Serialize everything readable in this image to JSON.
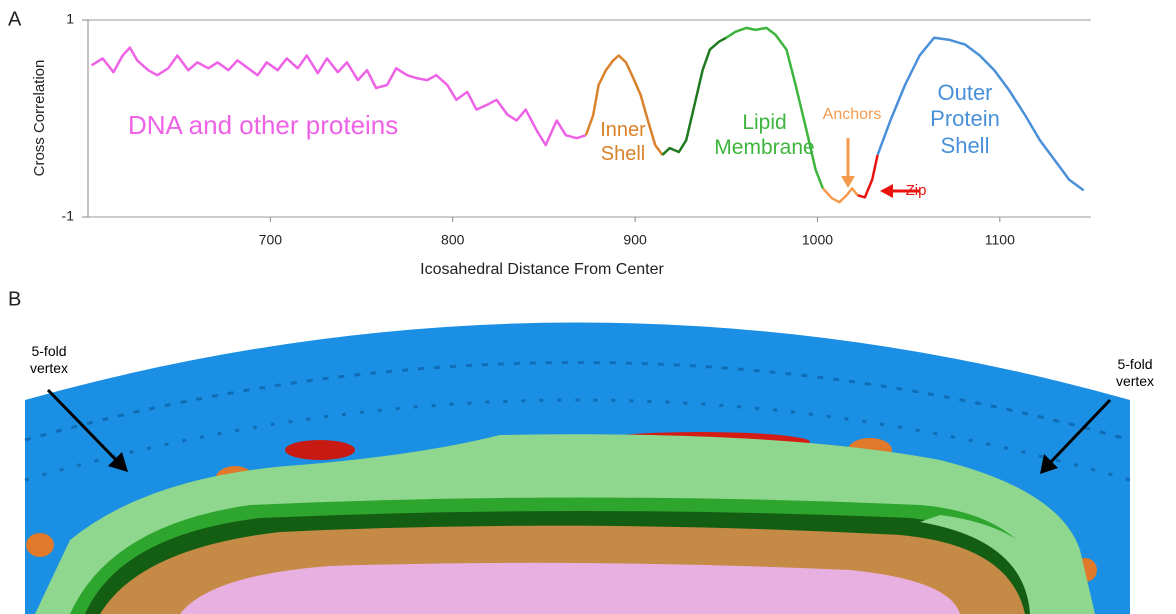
{
  "chart_data": {
    "type": "line",
    "panel_label": "A",
    "xlabel": "Icosahedral Distance From Center",
    "ylabel": "Cross Correlation",
    "xlim": [
      600,
      1150
    ],
    "xticks": [
      700,
      800,
      900,
      1000,
      1100
    ],
    "ylim": [
      -1,
      1
    ],
    "yticks": [
      -1,
      1
    ],
    "grid": true,
    "series": [
      {
        "name": "DNA and other proteins",
        "color": "#ee62e6",
        "x": [
          602,
          608,
          614,
          619,
          623,
          627,
          633,
          638,
          644,
          649,
          655,
          660,
          666,
          671,
          677,
          682,
          687,
          693,
          698,
          704,
          709,
          715,
          720,
          726,
          731,
          737,
          742,
          748,
          753,
          758,
          764,
          769,
          775,
          780,
          786,
          791,
          797,
          802,
          808,
          813,
          819,
          824,
          830,
          835,
          840,
          846,
          851,
          857,
          862,
          868,
          873
        ],
        "values": [
          0.54,
          0.61,
          0.47,
          0.64,
          0.72,
          0.59,
          0.49,
          0.44,
          0.51,
          0.64,
          0.49,
          0.57,
          0.51,
          0.57,
          0.49,
          0.59,
          0.52,
          0.44,
          0.57,
          0.49,
          0.61,
          0.51,
          0.64,
          0.46,
          0.61,
          0.47,
          0.57,
          0.39,
          0.49,
          0.31,
          0.34,
          0.51,
          0.44,
          0.41,
          0.39,
          0.44,
          0.34,
          0.19,
          0.27,
          0.09,
          0.14,
          0.19,
          0.04,
          -0.02,
          0.09,
          -0.12,
          -0.27,
          -0.02,
          -0.17,
          -0.2,
          -0.17
        ]
      },
      {
        "name": "Inner Shell",
        "color": "#d9822b",
        "x": [
          873,
          877,
          880,
          884,
          888,
          891,
          895,
          899,
          903,
          907,
          911,
          915
        ],
        "values": [
          -0.17,
          0.03,
          0.34,
          0.49,
          0.59,
          0.64,
          0.57,
          0.41,
          0.24,
          -0.02,
          -0.27,
          -0.37
        ]
      },
      {
        "color": "#1f7a1f",
        "x": [
          915,
          919,
          924,
          928,
          932,
          937,
          941,
          946,
          950
        ],
        "values": [
          -0.37,
          -0.3,
          -0.34,
          -0.22,
          0.09,
          0.49,
          0.7,
          0.78,
          0.82
        ]
      },
      {
        "name": "Lipid Membrane",
        "color": "#3db53d",
        "x": [
          950,
          955,
          961,
          966,
          972,
          977,
          983,
          988,
          994,
          999,
          1003
        ],
        "values": [
          0.82,
          0.88,
          0.92,
          0.9,
          0.92,
          0.85,
          0.7,
          0.34,
          -0.12,
          -0.52,
          -0.71
        ]
      },
      {
        "name": "Anchors",
        "color": "#f39a4e",
        "x": [
          1003,
          1008,
          1012,
          1016,
          1019,
          1022
        ],
        "values": [
          -0.71,
          -0.81,
          -0.85,
          -0.78,
          -0.71,
          -0.78
        ]
      },
      {
        "name": "Zip",
        "color": "#e8130f",
        "x": [
          1022,
          1026,
          1030,
          1033
        ],
        "values": [
          -0.78,
          -0.8,
          -0.62,
          -0.37
        ]
      },
      {
        "name": "Outer Protein Shell",
        "color": "#4a90d9",
        "x": [
          1033,
          1040,
          1048,
          1056,
          1064,
          1072,
          1081,
          1089,
          1097,
          1105,
          1114,
          1122,
          1130,
          1138,
          1146
        ],
        "values": [
          -0.37,
          -0.02,
          0.34,
          0.64,
          0.82,
          0.8,
          0.75,
          0.64,
          0.49,
          0.29,
          0.03,
          -0.22,
          -0.42,
          -0.62,
          -0.73
        ]
      }
    ]
  },
  "panel_b": {
    "panel_label": "B",
    "left_label": "5-fold vertex",
    "right_label": "5-fold vertex"
  }
}
